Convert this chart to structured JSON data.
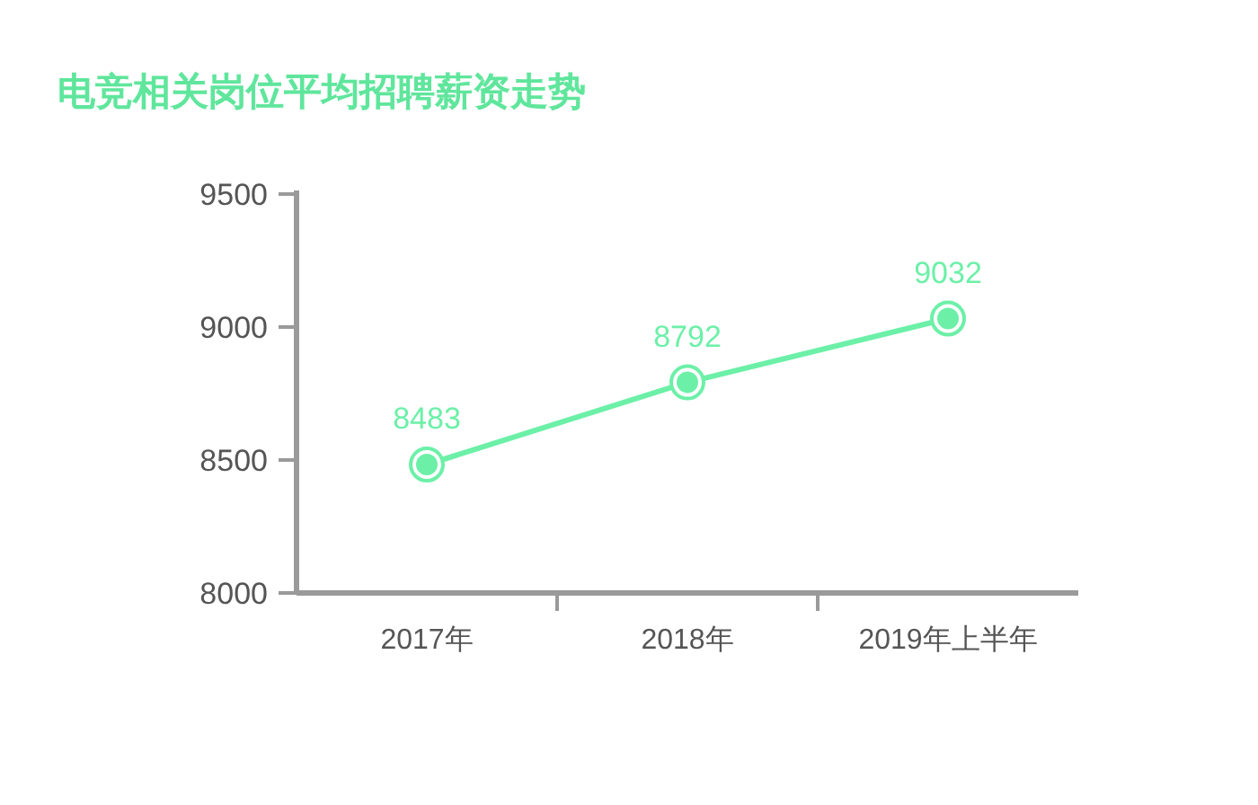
{
  "chart_data": {
    "type": "line",
    "title": "电竞相关岗位平均招聘薪资走势",
    "categories": [
      "2017年",
      "2018年",
      "2019年上半年"
    ],
    "series": [
      {
        "color": "#6cf0a8",
        "values": [
          8483,
          8792,
          9032
        ]
      }
    ],
    "ylim": [
      8000,
      9500
    ],
    "yticks": [
      8000,
      8500,
      9000,
      9500
    ],
    "grid": false,
    "marker": "circle",
    "line_style": "solid",
    "data_labels": true
  }
}
